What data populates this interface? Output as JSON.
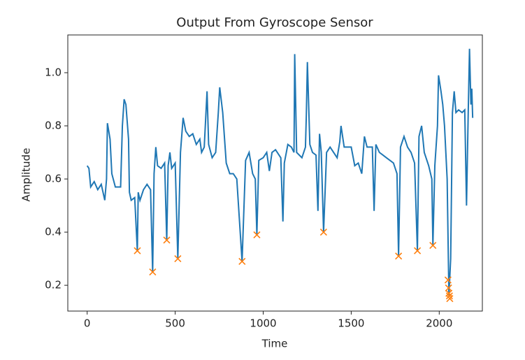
{
  "chart_data": {
    "type": "line",
    "title": "Output From Gyroscope Sensor",
    "xlabel": "Time",
    "ylabel": "Amplitude",
    "xlim": [
      -110,
      2245
    ],
    "ylim": [
      0.103,
      1.142
    ],
    "xticks": [
      0,
      500,
      1000,
      1500,
      2000
    ],
    "yticks": [
      0.2,
      0.4,
      0.6,
      0.8,
      {
        "value": 1,
        "label": "1.0"
      }
    ],
    "series": [
      {
        "color": "#1f77b4",
        "x": [
          0,
          10,
          20,
          40,
          60,
          80,
          100,
          110,
          115,
          130,
          140,
          160,
          190,
          200,
          210,
          220,
          235,
          240,
          250,
          270,
          285,
          290,
          300,
          320,
          340,
          360,
          372,
          380,
          390,
          400,
          420,
          440,
          452,
          460,
          470,
          480,
          500,
          515,
          530,
          545,
          560,
          580,
          600,
          620,
          640,
          650,
          665,
          681,
          690,
          710,
          730,
          745,
          753,
          770,
          790,
          810,
          830,
          850,
          880,
          900,
          920,
          940,
          955,
          964,
          975,
          1000,
          1020,
          1035,
          1050,
          1070,
          1100,
          1112,
          1120,
          1140,
          1160,
          1175,
          1179,
          1190,
          1220,
          1240,
          1245,
          1251,
          1265,
          1280,
          1300,
          1311,
          1320,
          1330,
          1343,
          1360,
          1380,
          1400,
          1420,
          1435,
          1442,
          1460,
          1480,
          1500,
          1520,
          1540,
          1560,
          1575,
          1590,
          1600,
          1620,
          1630,
          1640,
          1660,
          1680,
          1700,
          1720,
          1740,
          1760,
          1769,
          1780,
          1800,
          1820,
          1840,
          1860,
          1876,
          1885,
          1900,
          1915,
          1940,
          1958,
          1964,
          1975,
          1990,
          1996,
          2010,
          2020,
          2030,
          2045,
          2055,
          2065,
          2075,
          2085,
          2095,
          2110,
          2130,
          2145,
          2155,
          2165,
          2172,
          2180,
          2185,
          2190
        ],
        "values": [
          0.65,
          0.64,
          0.57,
          0.59,
          0.56,
          0.58,
          0.52,
          0.6,
          0.81,
          0.75,
          0.62,
          0.57,
          0.57,
          0.8,
          0.9,
          0.88,
          0.75,
          0.55,
          0.52,
          0.53,
          0.33,
          0.55,
          0.52,
          0.56,
          0.58,
          0.56,
          0.25,
          0.62,
          0.72,
          0.65,
          0.64,
          0.66,
          0.37,
          0.65,
          0.7,
          0.64,
          0.66,
          0.3,
          0.7,
          0.83,
          0.78,
          0.76,
          0.77,
          0.73,
          0.75,
          0.7,
          0.72,
          0.93,
          0.73,
          0.68,
          0.7,
          0.85,
          0.945,
          0.85,
          0.66,
          0.62,
          0.62,
          0.6,
          0.29,
          0.67,
          0.7,
          0.62,
          0.6,
          0.39,
          0.67,
          0.68,
          0.7,
          0.63,
          0.7,
          0.71,
          0.68,
          0.44,
          0.66,
          0.73,
          0.72,
          0.7,
          1.07,
          0.7,
          0.68,
          0.72,
          0.84,
          1.04,
          0.73,
          0.7,
          0.69,
          0.48,
          0.77,
          0.7,
          0.4,
          0.7,
          0.72,
          0.7,
          0.68,
          0.74,
          0.8,
          0.72,
          0.72,
          0.72,
          0.65,
          0.66,
          0.62,
          0.76,
          0.72,
          0.72,
          0.72,
          0.48,
          0.73,
          0.7,
          0.69,
          0.68,
          0.67,
          0.66,
          0.62,
          0.31,
          0.72,
          0.76,
          0.72,
          0.7,
          0.66,
          0.33,
          0.76,
          0.8,
          0.7,
          0.65,
          0.6,
          0.35,
          0.65,
          0.8,
          0.99,
          0.93,
          0.88,
          0.8,
          0.6,
          0.16,
          0.3,
          0.85,
          0.93,
          0.85,
          0.86,
          0.85,
          0.86,
          0.5,
          0.86,
          1.09,
          0.88,
          0.94,
          0.83
        ]
      },
      {
        "type": "scatter",
        "color": "#ff7f0e",
        "marker": "x",
        "x": [
          285,
          372,
          452,
          515,
          880,
          964,
          1343,
          1769,
          1876,
          1964,
          2050,
          2053,
          2055,
          2058,
          2060
        ],
        "values": [
          0.33,
          0.25,
          0.37,
          0.3,
          0.29,
          0.39,
          0.4,
          0.31,
          0.33,
          0.35,
          0.22,
          0.19,
          0.17,
          0.16,
          0.15
        ]
      }
    ]
  }
}
